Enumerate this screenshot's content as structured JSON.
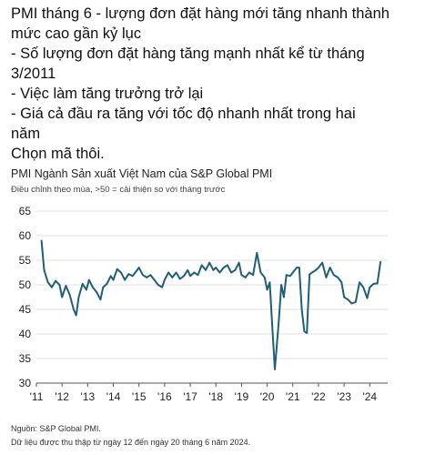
{
  "post": {
    "lines": [
      "PMI tháng 6 - lượng đơn đặt hàng mới tăng nhanh thành",
      "mức cao gần kỷ lục",
      "- Số lượng đơn đặt hàng tăng mạnh nhất kể từ tháng",
      "3/2011",
      "- Việc làm tăng trưởng trở lại",
      "- Giá cả đầu ra tăng với tốc độ nhanh nhất trong hai",
      "năm",
      "Chọn mã thôi."
    ]
  },
  "chart_data": {
    "type": "line",
    "title": "PMI Ngành Sản xuất Việt Nam của S&P Global PMI",
    "subtitle": "Điều chỉnh theo mùa, >50 = cải thiện so với tháng trước",
    "source": "Nguồn: S&P Global PMI.",
    "note": "Dữ liệu được thu thập từ ngày 12 đến ngày 20 tháng 6 năm 2024.",
    "ylim": [
      30,
      65
    ],
    "yticks": [
      "30",
      "35",
      "40",
      "45",
      "50",
      "55",
      "60",
      "65"
    ],
    "xticks": [
      "'11",
      "'12",
      "'13",
      "'14",
      "'15",
      "'16",
      "'17",
      "'18",
      "'19",
      "'20",
      "'21",
      "'22",
      "'23",
      "'24"
    ],
    "xlim": [
      2011.0,
      2024.7
    ],
    "grid": "horizontal",
    "line_color": "#1f5f7a",
    "series": [
      {
        "name": "",
        "x": [
          2011.2,
          2011.3,
          2011.45,
          2011.6,
          2011.75,
          2011.9,
          2012.0,
          2012.15,
          2012.3,
          2012.45,
          2012.55,
          2012.65,
          2012.8,
          2012.95,
          2013.05,
          2013.2,
          2013.35,
          2013.5,
          2013.6,
          2013.75,
          2013.9,
          2014.0,
          2014.15,
          2014.3,
          2014.45,
          2014.6,
          2014.75,
          2014.9,
          2015.0,
          2015.15,
          2015.3,
          2015.45,
          2015.6,
          2015.75,
          2015.9,
          2016.0,
          2016.15,
          2016.3,
          2016.45,
          2016.6,
          2016.75,
          2016.9,
          2017.0,
          2017.15,
          2017.3,
          2017.45,
          2017.6,
          2017.75,
          2017.9,
          2018.0,
          2018.15,
          2018.3,
          2018.45,
          2018.6,
          2018.75,
          2018.9,
          2019.0,
          2019.15,
          2019.3,
          2019.45,
          2019.6,
          2019.75,
          2019.9,
          2020.0,
          2020.1,
          2020.2,
          2020.3,
          2020.45,
          2020.55,
          2020.65,
          2020.75,
          2020.9,
          2021.0,
          2021.15,
          2021.25,
          2021.35,
          2021.45,
          2021.55,
          2021.65,
          2021.75,
          2021.9,
          2022.0,
          2022.15,
          2022.3,
          2022.45,
          2022.6,
          2022.75,
          2022.9,
          2023.0,
          2023.15,
          2023.3,
          2023.45,
          2023.6,
          2023.75,
          2023.9,
          2024.0,
          2024.15,
          2024.3,
          2024.42
        ],
        "values": [
          59.0,
          53.0,
          50.5,
          49.5,
          50.8,
          50.0,
          47.5,
          49.8,
          48.0,
          45.0,
          43.8,
          47.5,
          50.2,
          49.0,
          51.0,
          49.5,
          48.5,
          47.0,
          49.5,
          50.2,
          51.8,
          51.0,
          53.2,
          52.5,
          51.0,
          52.2,
          51.8,
          52.8,
          53.5,
          52.0,
          51.5,
          52.0,
          51.0,
          50.0,
          49.5,
          51.0,
          52.5,
          51.5,
          52.5,
          51.2,
          51.8,
          53.0,
          51.8,
          52.5,
          52.0,
          54.0,
          53.0,
          54.5,
          53.0,
          53.5,
          52.5,
          53.5,
          54.0,
          52.5,
          53.0,
          54.5,
          52.0,
          51.5,
          52.5,
          52.0,
          56.5,
          52.5,
          51.5,
          49.0,
          50.5,
          41.5,
          32.8,
          42.5,
          50.0,
          47.5,
          52.0,
          51.8,
          52.5,
          53.5,
          53.5,
          45.0,
          40.5,
          40.2,
          52.1,
          52.5,
          53.0,
          53.5,
          54.5,
          51.5,
          53.5,
          52.0,
          51.5,
          50.5,
          47.5,
          47.0,
          46.2,
          46.5,
          50.5,
          49.5,
          47.3,
          49.5,
          50.2,
          50.3,
          54.7
        ]
      }
    ]
  }
}
